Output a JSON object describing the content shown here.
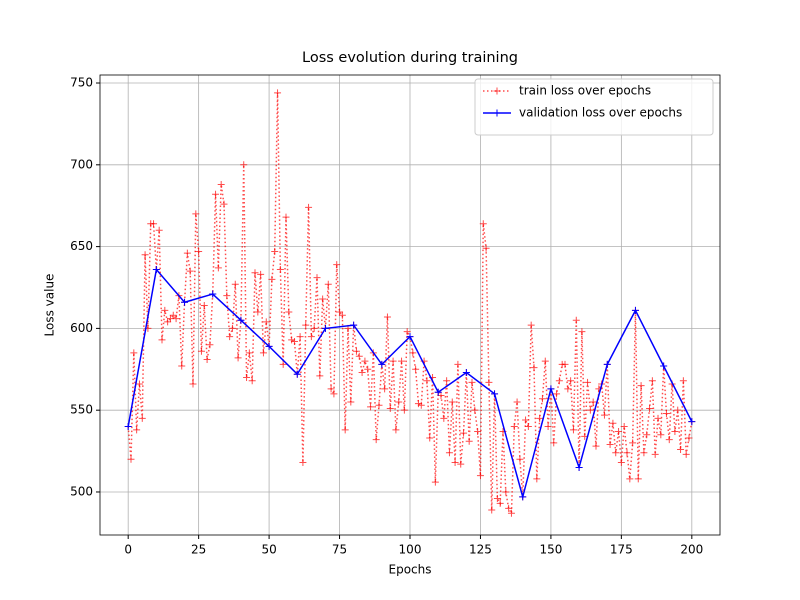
{
  "chart_data": {
    "type": "line",
    "title": "Loss evolution during training",
    "x_label": "Epochs",
    "y_label": "Loss value",
    "xlim": [
      -10,
      210
    ],
    "ylim": [
      473.7,
      754.9
    ],
    "xticks": [
      0,
      25,
      50,
      75,
      100,
      125,
      150,
      175,
      200
    ],
    "yticks": [
      500,
      550,
      600,
      650,
      700,
      750
    ],
    "grid": true,
    "legend": "upper right",
    "series": [
      {
        "name": "train loss over epochs",
        "color": "#ff0000",
        "style": "dotted",
        "x": [
          0,
          1,
          2,
          3,
          4,
          5,
          6,
          7,
          8,
          9,
          10,
          11,
          12,
          13,
          14,
          15,
          16,
          17,
          18,
          19,
          20,
          21,
          22,
          23,
          24,
          25,
          26,
          27,
          28,
          29,
          30,
          31,
          32,
          33,
          34,
          35,
          36,
          37,
          38,
          39,
          40,
          41,
          42,
          43,
          44,
          45,
          46,
          47,
          48,
          49,
          50,
          51,
          52,
          53,
          54,
          55,
          56,
          57,
          58,
          59,
          60,
          61,
          62,
          63,
          64,
          65,
          66,
          67,
          68,
          69,
          70,
          71,
          72,
          73,
          74,
          75,
          76,
          77,
          78,
          79,
          80,
          81,
          82,
          83,
          84,
          85,
          86,
          87,
          88,
          89,
          90,
          91,
          92,
          93,
          94,
          95,
          96,
          97,
          98,
          99,
          100,
          101,
          102,
          103,
          104,
          105,
          106,
          107,
          108,
          109,
          110,
          111,
          112,
          113,
          114,
          115,
          116,
          117,
          118,
          119,
          120,
          121,
          122,
          123,
          124,
          125,
          126,
          127,
          128,
          129,
          130,
          131,
          132,
          133,
          134,
          135,
          136,
          137,
          138,
          139,
          140,
          141,
          142,
          143,
          144,
          145,
          146,
          147,
          148,
          149,
          150,
          151,
          152,
          153,
          154,
          155,
          156,
          157,
          158,
          159,
          160,
          161,
          162,
          163,
          164,
          165,
          166,
          167,
          168,
          169,
          170,
          171,
          172,
          173,
          174,
          175,
          176,
          177,
          178,
          179,
          180,
          181,
          182,
          183,
          184,
          185,
          186,
          187,
          188,
          189,
          190,
          191,
          192,
          193,
          194,
          195,
          196,
          197,
          198,
          199,
          200
        ],
        "values": [
          540,
          520,
          585,
          538,
          566,
          545,
          645,
          600,
          664,
          664,
          636,
          660,
          593,
          611,
          604,
          606,
          608,
          606,
          620,
          577,
          616,
          646,
          635,
          566,
          670,
          647,
          586,
          614,
          581,
          590,
          621,
          682,
          637,
          688,
          676,
          620,
          595,
          600,
          627,
          582,
          605,
          700,
          570,
          585,
          568,
          634,
          610,
          633,
          585,
          604,
          589,
          630,
          647,
          744,
          636,
          578,
          668,
          610,
          593,
          592,
          572,
          595,
          518,
          602,
          674,
          595,
          600,
          631,
          571,
          618,
          600,
          627,
          563,
          560,
          639,
          610,
          608,
          538,
          600,
          555,
          602,
          586,
          583,
          573,
          580,
          575,
          552,
          585,
          532,
          553,
          578,
          563,
          607,
          551,
          580,
          538,
          555,
          580,
          550,
          598,
          595,
          585,
          575,
          554,
          553,
          580,
          568,
          533,
          570,
          506,
          561,
          559,
          545,
          568,
          524,
          555,
          518,
          578,
          517,
          536,
          573,
          531,
          567,
          550,
          537,
          510,
          664,
          649,
          567,
          489,
          560,
          496,
          493,
          537,
          500,
          490,
          487,
          540,
          555,
          520,
          497,
          544,
          540,
          602,
          576,
          508,
          545,
          557,
          580,
          540,
          563,
          530,
          560,
          568,
          578,
          578,
          563,
          568,
          538,
          605,
          515,
          598,
          534,
          567,
          550,
          555,
          528,
          563,
          566,
          547,
          578,
          529,
          542,
          524,
          537,
          518,
          540,
          524,
          508,
          530,
          611,
          508,
          565,
          524,
          535,
          551,
          568,
          523,
          545,
          535,
          577,
          548,
          532,
          566,
          537,
          550,
          526,
          568,
          523,
          533,
          543
        ]
      },
      {
        "name": "validation loss over epochs",
        "color": "#0000ff",
        "style": "solid",
        "x": [
          0,
          10,
          20,
          30,
          40,
          50,
          60,
          70,
          80,
          90,
          100,
          110,
          120,
          130,
          140,
          150,
          160,
          170,
          180,
          190,
          200
        ],
        "values": [
          540,
          636,
          616,
          621,
          605,
          589,
          572,
          600,
          602,
          578,
          595,
          561,
          573,
          560,
          497,
          563,
          515,
          578,
          611,
          577,
          543
        ]
      }
    ]
  }
}
